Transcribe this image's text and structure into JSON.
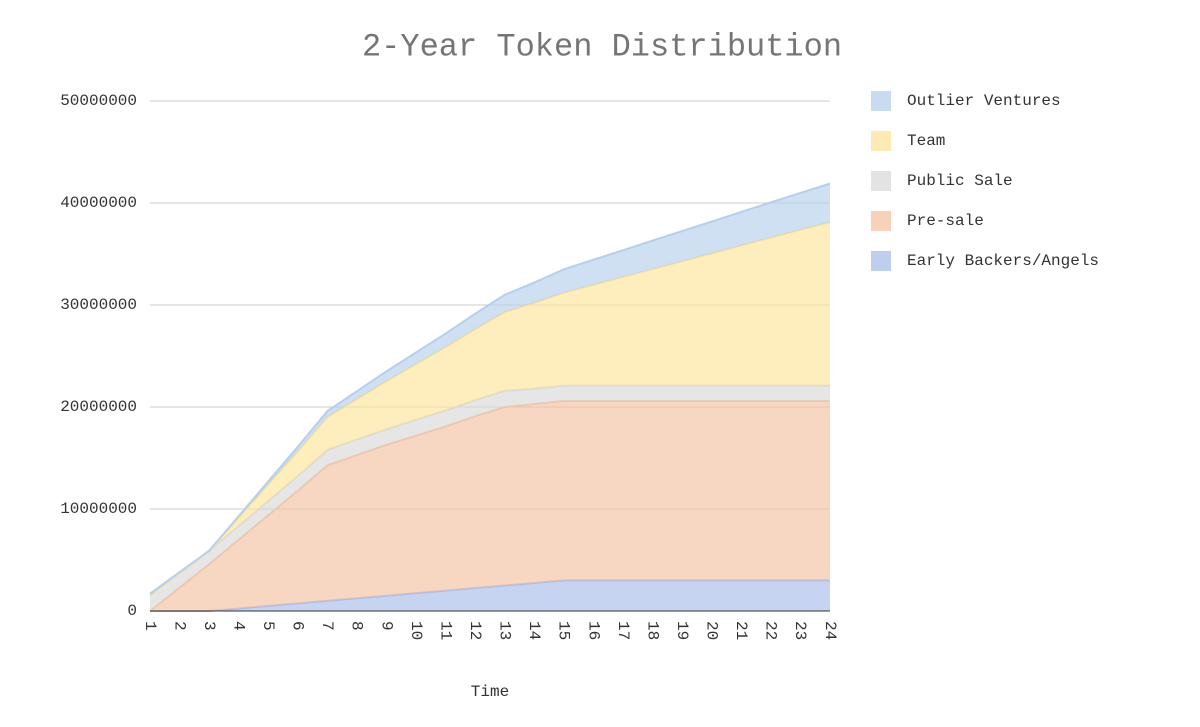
{
  "chart_data": {
    "type": "stacked-area",
    "title": "2-Year Token Distribution",
    "x_label": "Time",
    "categories": [
      "1",
      "2",
      "3",
      "4",
      "5",
      "6",
      "7",
      "8",
      "9",
      "10",
      "11",
      "12",
      "13",
      "14",
      "15",
      "16",
      "17",
      "18",
      "19",
      "20",
      "21",
      "22",
      "23",
      "24"
    ],
    "series": [
      {
        "name": "Early Backers/Angels",
        "color": "#a9bdea",
        "values": [
          0,
          0,
          0,
          250000,
          500000,
          750000,
          1000000,
          1250000,
          1500000,
          1750000,
          2000000,
          2250000,
          2500000,
          2750000,
          3000000,
          3000000,
          3000000,
          3000000,
          3000000,
          3000000,
          3000000,
          3000000,
          3000000,
          3000000
        ]
      },
      {
        "name": "Pre-sale",
        "color": "#f4c1a2",
        "values": [
          0,
          2300000,
          4600000,
          6750000,
          8900000,
          11050000,
          13300000,
          14050000,
          14800000,
          15450000,
          16100000,
          16850000,
          17500000,
          17550000,
          17600000,
          17600000,
          17600000,
          17600000,
          17600000,
          17600000,
          17600000,
          17600000,
          17600000,
          17600000
        ]
      },
      {
        "name": "Public Sale",
        "color": "#d9d9d9",
        "values": [
          1500000,
          1400000,
          1300000,
          1350000,
          1400000,
          1450000,
          1500000,
          1520000,
          1530000,
          1550000,
          1570000,
          1580000,
          1600000,
          1500000,
          1500000,
          1500000,
          1500000,
          1500000,
          1500000,
          1500000,
          1500000,
          1500000,
          1500000,
          1500000
        ]
      },
      {
        "name": "Team",
        "color": "#fde39a",
        "values": [
          0,
          0,
          0,
          800000,
          1600000,
          2400000,
          3200000,
          3950000,
          4700000,
          5450000,
          6200000,
          6950000,
          7700000,
          8400000,
          9100000,
          9870000,
          10640000,
          11410000,
          12180000,
          12950000,
          13720000,
          14490000,
          15260000,
          16000000
        ]
      },
      {
        "name": "Outlier Ventures",
        "color": "#b5cfec",
        "values": [
          200000,
          100000,
          0,
          150000,
          300000,
          450000,
          600000,
          780000,
          970000,
          1150000,
          1330000,
          1520000,
          1700000,
          2000000,
          2300000,
          2470000,
          2630000,
          2800000,
          2970000,
          3130000,
          3300000,
          3470000,
          3630000,
          3800000
        ]
      }
    ],
    "ylim": [
      0,
      50000000
    ],
    "yticks": [
      0,
      10000000,
      20000000,
      30000000,
      40000000,
      50000000
    ],
    "grid": true,
    "legend": "right"
  }
}
